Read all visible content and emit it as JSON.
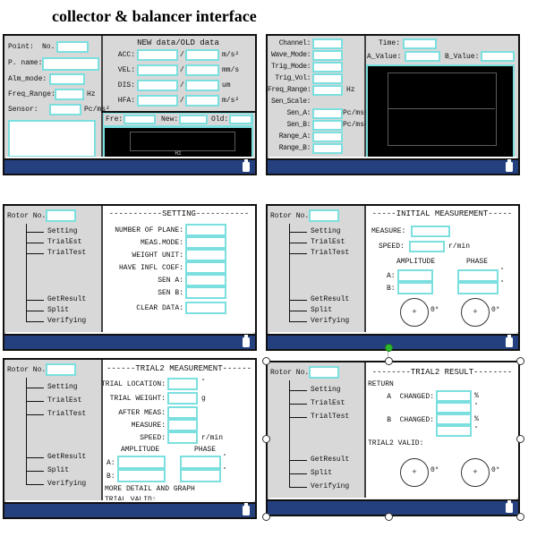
{
  "title": "collector & balancer interface",
  "colors": {
    "accent_cyan": "#7CDFDF",
    "status_bar_navy": "#24407F",
    "panel_gray": "#D8D8D8",
    "display_black": "#000000",
    "selection_green": "#2DB82D"
  },
  "tree": {
    "rotor_label": "Rotor No.",
    "items": [
      "Setting",
      "TrialEst",
      "TrialTest",
      "GetResult",
      "Split",
      "Verifying"
    ]
  },
  "panel_collector": {
    "fields": [
      {
        "label": "Point:",
        "label2": "No.",
        "unit": ""
      },
      {
        "label": "P. name:",
        "unit": ""
      },
      {
        "label": "Alm_mode:",
        "unit": ""
      },
      {
        "label": "Freq_Range:",
        "unit": "Hz"
      },
      {
        "label": "Sensor:",
        "unit": "Pc/ms²"
      }
    ],
    "newold": {
      "header": "NEW data/OLD data",
      "separator": "/",
      "rows": [
        {
          "label": "ACC:",
          "unit": "m/s²"
        },
        {
          "label": "VEL:",
          "unit": "mm/s"
        },
        {
          "label": "DIS:",
          "unit": "um"
        },
        {
          "label": "HFA:",
          "unit": "m/s²"
        }
      ]
    },
    "strip": {
      "fre_label": "Fre:",
      "new_label": "New:",
      "old_label": "Old:"
    },
    "display_unit": "Hz"
  },
  "panel_channel": {
    "fields": [
      {
        "label": "Channel:",
        "box": true,
        "unit": ""
      },
      {
        "label": "Wave_Mode:",
        "box": true,
        "unit": ""
      },
      {
        "label": "Trig_Mode:",
        "box": true,
        "unit": ""
      },
      {
        "label": "Trig_Vol:",
        "box": true,
        "unit": ""
      },
      {
        "label": "Freq_Range:",
        "box": true,
        "unit": "Hz"
      },
      {
        "label": "Sen_Scale:",
        "box": false,
        "unit": ""
      },
      {
        "label": "Sen_A:",
        "box": true,
        "unit": "Pc/ms²"
      },
      {
        "label": "Sen_B:",
        "box": true,
        "unit": "Pc/ms²"
      },
      {
        "label": "Range_A:",
        "box": true,
        "unit": ""
      },
      {
        "label": "Range_B:",
        "box": true,
        "unit": ""
      }
    ],
    "time_label": "Time:",
    "a_value_label": "A_Value:",
    "b_value_label": "B_Value:"
  },
  "panel_setting": {
    "header": "-----------SETTING-----------",
    "rows": [
      "NUMBER OF PLANE:",
      "MEAS.MODE:",
      "WEIGHT UNIT:",
      "HAVE INFL COEF:",
      "SEN A:",
      "SEN B:",
      "CLEAR DATA:"
    ]
  },
  "panel_initial": {
    "header": "-----INITIAL MEASUREMENT-----",
    "measure_label": "MEASURE:",
    "speed_label": "SPEED:",
    "speed_unit": "r/min",
    "amplitude_header": "AMPLITUDE",
    "phase_header": "PHASE",
    "a_label": "A:",
    "b_label": "B:",
    "degree_mark": "°",
    "zero_degree": "0°"
  },
  "panel_trial2_measurement": {
    "header": "------TRIAL2 MEASUREMENT------",
    "rows": [
      {
        "label": "TRIAL LOCATION:",
        "unit": "°"
      },
      {
        "label": "TRIAL WEIGHT:",
        "unit": "g"
      },
      {
        "label": "AFTER MEAS:",
        "unit": ""
      },
      {
        "label": "MEASURE:",
        "unit": ""
      },
      {
        "label": "SPEED:",
        "unit": "r/min"
      }
    ],
    "amplitude_header": "AMPLITUDE",
    "phase_header": "PHASE",
    "a_label": "A:",
    "b_label": "B:",
    "degree_mark": "°",
    "more_label": "MORE DETAIL AND GRAPH",
    "valid_label": "TRIAL VALID:"
  },
  "panel_trial2_result": {
    "header": "--------TRIAL2 RESULT--------",
    "return_label": "RETURN",
    "a_changed_label": "A  CHANGED:",
    "b_changed_label": "B  CHANGED:",
    "percent_mark": "%",
    "degree_mark": "°",
    "valid_label": "TRIAL2 VALID:",
    "zero_degree": "0°"
  }
}
